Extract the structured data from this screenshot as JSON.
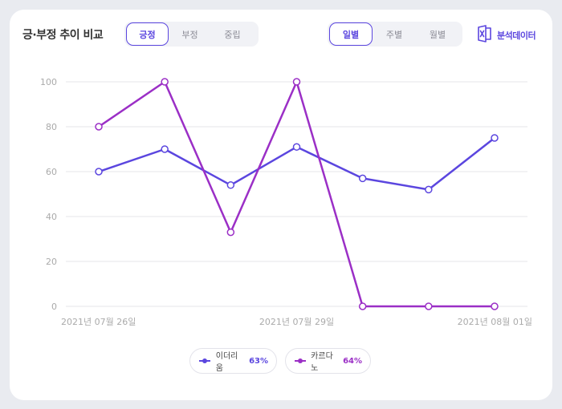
{
  "header": {
    "title": "긍·부정 추이 비교",
    "sentiment_tabs": [
      {
        "label": "긍정",
        "active": true
      },
      {
        "label": "부정",
        "active": false
      },
      {
        "label": "중립",
        "active": false
      }
    ],
    "period_tabs": [
      {
        "label": "일별",
        "active": true
      },
      {
        "label": "주별",
        "active": false
      },
      {
        "label": "월별",
        "active": false
      }
    ],
    "export_label": "분석데이터",
    "export_icon": "excel-icon"
  },
  "legend": [
    {
      "name": "이더리움",
      "percent": "63%"
    },
    {
      "name": "카르다노",
      "percent": "64%"
    }
  ],
  "colors": {
    "accent": "#5b46df",
    "series1": "#5b46df",
    "series2": "#9b2fc6",
    "grid": "#e6e6ea",
    "tick": "#aaaaaa"
  },
  "chart_data": {
    "type": "line",
    "x": [
      "2021-07-26",
      "2021-07-27",
      "2021-07-28",
      "2021-07-29",
      "2021-07-30",
      "2021-07-31",
      "2021-08-01"
    ],
    "x_tick_labels": [
      "2021년 07월 26일",
      "2021년 07월 29일",
      "2021년 08월 01일"
    ],
    "y_tick_labels": [
      "0",
      "20",
      "40",
      "60",
      "80",
      "100"
    ],
    "ylim": [
      0,
      100
    ],
    "grid": true,
    "legend_position": "bottom",
    "series": [
      {
        "name": "이더리움",
        "values": [
          60,
          70,
          54,
          71,
          57,
          52,
          75
        ]
      },
      {
        "name": "카르다노",
        "values": [
          80,
          100,
          33,
          100,
          0,
          0,
          0
        ]
      }
    ]
  }
}
